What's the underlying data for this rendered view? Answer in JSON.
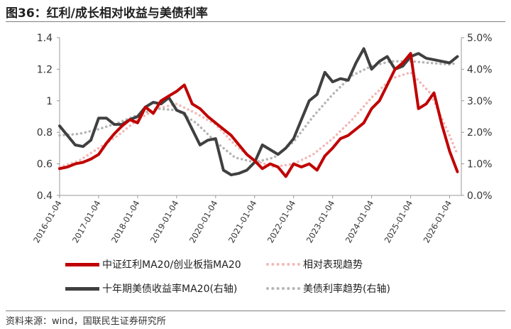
{
  "title": "图36：红利/成长相对收益与美债利率",
  "source": "资料来源：wind，国联民生证券研究所",
  "legend": [
    {
      "label": "中证红利MA20/创业板指MA20",
      "color": "#c00000",
      "style": "solid"
    },
    {
      "label": "相对表现趋势",
      "color": "#f2b8b8",
      "style": "dotted"
    },
    {
      "label": "十年期美债收益率MA20(右轴)",
      "color": "#404040",
      "style": "solid"
    },
    {
      "label": "美债利率趋势(右轴)",
      "color": "#b5b5b5",
      "style": "dotted"
    }
  ],
  "chart_data": {
    "type": "line",
    "x_tick_labels": [
      "2016-01-04",
      "2017-01-04",
      "2018-01-04",
      "2019-01-04",
      "2020-01-04",
      "2021-01-04",
      "2022-01-04",
      "2023-01-04",
      "2024-01-04",
      "2025-01-04",
      "2026-01-04"
    ],
    "y_left": {
      "range": [
        0.4,
        1.4
      ],
      "ticks": [
        "0.4",
        "0.6",
        "0.8",
        "1",
        "1.2",
        "1.4"
      ]
    },
    "y_right": {
      "range": [
        0,
        5
      ],
      "ticks": [
        "0.0%",
        "1.0%",
        "2.0%",
        "3.0%",
        "4.0%",
        "5.0%"
      ]
    },
    "grid": false,
    "legend_position": "bottom",
    "series": [
      {
        "name": "中证红利MA20/创业板指MA20",
        "axis": "left",
        "color": "#c00000",
        "style": "solid",
        "x": [
          2016.0,
          2016.2,
          2016.4,
          2016.6,
          2016.8,
          2017.0,
          2017.2,
          2017.4,
          2017.6,
          2017.8,
          2018.0,
          2018.2,
          2018.4,
          2018.6,
          2018.8,
          2019.0,
          2019.2,
          2019.4,
          2019.6,
          2019.8,
          2020.0,
          2020.2,
          2020.4,
          2020.6,
          2020.8,
          2021.0,
          2021.2,
          2021.4,
          2021.6,
          2021.8,
          2022.0,
          2022.2,
          2022.4,
          2022.6,
          2022.8,
          2023.0,
          2023.2,
          2023.4,
          2023.6,
          2023.8,
          2024.0,
          2024.2,
          2024.4,
          2024.6,
          2024.8,
          2025.0,
          2025.2,
          2025.4,
          2025.6,
          2025.8,
          2026.0,
          2026.2
        ],
        "y": [
          0.57,
          0.58,
          0.6,
          0.61,
          0.63,
          0.66,
          0.73,
          0.79,
          0.84,
          0.88,
          0.86,
          0.96,
          0.92,
          1.0,
          1.03,
          1.06,
          1.1,
          0.98,
          0.95,
          0.9,
          0.86,
          0.82,
          0.78,
          0.72,
          0.66,
          0.62,
          0.57,
          0.6,
          0.58,
          0.52,
          0.6,
          0.58,
          0.6,
          0.56,
          0.65,
          0.7,
          0.76,
          0.78,
          0.82,
          0.86,
          0.95,
          1.0,
          1.1,
          1.2,
          1.24,
          1.3,
          0.95,
          0.98,
          1.05,
          0.85,
          0.68,
          0.55
        ]
      },
      {
        "name": "相对表现趋势",
        "axis": "left",
        "color": "#f2b8b8",
        "style": "dotted",
        "x": [
          2016.0,
          2016.5,
          2017.0,
          2017.5,
          2018.0,
          2018.5,
          2019.0,
          2019.5,
          2020.0,
          2020.5,
          2021.0,
          2021.5,
          2022.0,
          2022.5,
          2023.0,
          2023.5,
          2024.0,
          2024.5,
          2025.0,
          2025.5,
          2026.0,
          2026.2
        ],
        "y": [
          0.58,
          0.62,
          0.7,
          0.78,
          0.88,
          0.95,
          0.98,
          0.92,
          0.85,
          0.72,
          0.62,
          0.58,
          0.6,
          0.66,
          0.76,
          0.88,
          1.02,
          1.14,
          1.18,
          1.05,
          0.78,
          0.66
        ]
      },
      {
        "name": "十年期美债收益率MA20(右轴)",
        "axis": "right",
        "color": "#404040",
        "style": "solid",
        "x": [
          2016.0,
          2016.2,
          2016.4,
          2016.6,
          2016.8,
          2017.0,
          2017.2,
          2017.4,
          2017.6,
          2017.8,
          2018.0,
          2018.2,
          2018.4,
          2018.6,
          2018.8,
          2019.0,
          2019.2,
          2019.4,
          2019.6,
          2019.8,
          2020.0,
          2020.2,
          2020.4,
          2020.6,
          2020.8,
          2021.0,
          2021.2,
          2021.4,
          2021.6,
          2021.8,
          2022.0,
          2022.2,
          2022.4,
          2022.6,
          2022.8,
          2023.0,
          2023.2,
          2023.4,
          2023.6,
          2023.8,
          2024.0,
          2024.2,
          2024.4,
          2024.6,
          2024.8,
          2025.0,
          2025.2,
          2025.4,
          2025.6,
          2025.8,
          2026.0,
          2026.2
        ],
        "y": [
          2.2,
          1.9,
          1.6,
          1.55,
          1.75,
          2.45,
          2.45,
          2.25,
          2.25,
          2.4,
          2.5,
          2.8,
          2.95,
          2.9,
          3.1,
          2.7,
          2.6,
          2.1,
          1.6,
          1.75,
          1.8,
          0.8,
          0.65,
          0.7,
          0.8,
          1.05,
          1.6,
          1.45,
          1.3,
          1.5,
          1.8,
          2.4,
          3.0,
          3.2,
          3.9,
          3.6,
          3.7,
          3.65,
          4.2,
          4.65,
          4.0,
          4.25,
          4.4,
          4.0,
          4.1,
          4.4,
          4.5,
          4.35,
          4.3,
          4.25,
          4.2,
          4.4
        ]
      },
      {
        "name": "美债利率趋势(右轴)",
        "axis": "right",
        "color": "#b5b5b5",
        "style": "dotted",
        "x": [
          2016.0,
          2016.5,
          2017.0,
          2017.5,
          2018.0,
          2018.5,
          2019.0,
          2019.5,
          2020.0,
          2020.5,
          2021.0,
          2021.5,
          2022.0,
          2022.5,
          2023.0,
          2023.5,
          2024.0,
          2024.5,
          2025.0,
          2025.5,
          2026.0,
          2026.2
        ],
        "y": [
          1.9,
          1.95,
          2.1,
          2.3,
          2.55,
          2.75,
          2.7,
          2.3,
          1.7,
          1.2,
          1.05,
          1.2,
          1.7,
          2.5,
          3.2,
          3.8,
          4.1,
          4.25,
          4.25,
          4.2,
          4.15,
          4.2
        ]
      }
    ]
  }
}
